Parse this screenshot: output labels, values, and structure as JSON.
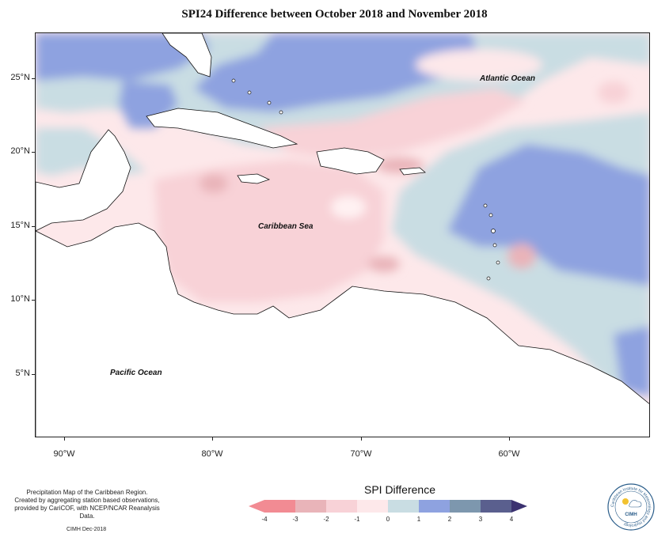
{
  "title": "SPI24 Difference between October 2018 and November 2018",
  "map": {
    "lat_labels": [
      "25°N",
      "20°N",
      "15°N",
      "10°N",
      "5°N"
    ],
    "lon_labels": [
      "90°W",
      "80°W",
      "70°W",
      "60°W"
    ],
    "oceans": {
      "atlantic": "Atlantic Ocean",
      "caribbean": "Caribbean Sea",
      "pacific": "Pacific Ocean"
    }
  },
  "legend": {
    "title": "SPI Difference",
    "ticks": [
      "-4",
      "-3",
      "-2",
      "-1",
      "0",
      "1",
      "2",
      "3",
      "4"
    ],
    "colors": [
      "#f28b93",
      "#e9b4b9",
      "#f8d2d7",
      "#fde8ea",
      "#c9dde3",
      "#8ea2e0",
      "#7d97ae",
      "#5a5f8e",
      "#3b3270"
    ]
  },
  "credits": {
    "line1": "Precipitation Map of the Caribbean Region.",
    "line2": "Created by aggregating station based observations,",
    "line3": "provided by CariCOF, with NCEP/NCAR Reanalysis Data.",
    "date": "CIMH Dec-2018"
  },
  "logo": {
    "arc_text": "Caribbean Institute for Meteorology and Hydrology",
    "abbr": "CIMH"
  }
}
